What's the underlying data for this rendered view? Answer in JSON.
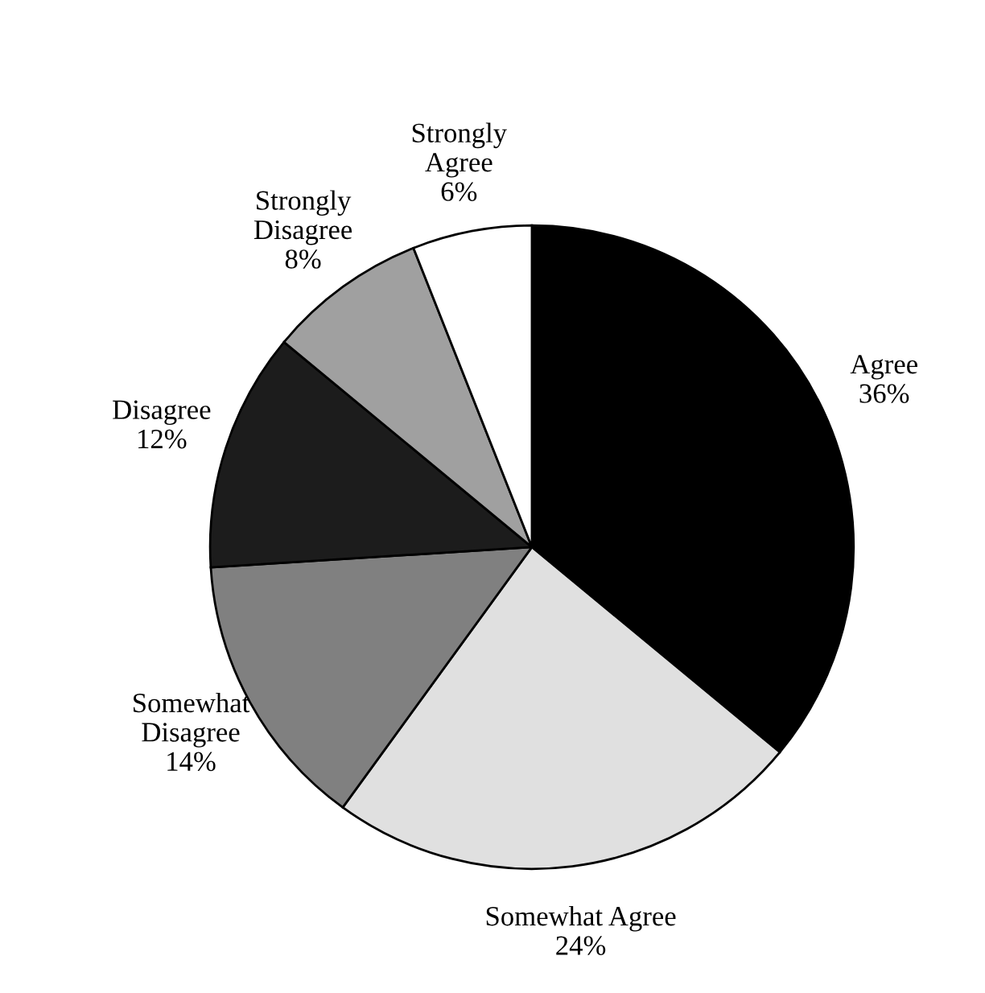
{
  "chart_data": {
    "type": "pie",
    "categories": [
      "Agree",
      "Somewhat Agree",
      "Somewhat\nDisagree",
      "Disagree",
      "Strongly\nDisagree",
      "Strongly\nAgree"
    ],
    "values": [
      36,
      24,
      14,
      12,
      8,
      6
    ],
    "value_labels": [
      "36%",
      "24%",
      "14%",
      "12%",
      "8%",
      "6%"
    ],
    "colors": [
      "#000000",
      "#e0e0e0",
      "#808080",
      "#1c1c1c",
      "#a0a0a0",
      "#ffffff"
    ],
    "legend": false
  }
}
